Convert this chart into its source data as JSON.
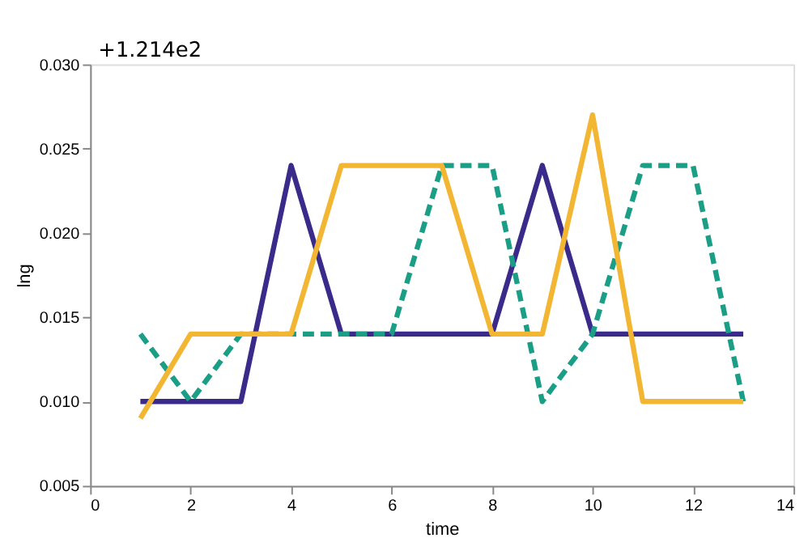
{
  "chart_data": {
    "type": "line",
    "xlabel": "time",
    "ylabel": "lng",
    "x": [
      1,
      2,
      3,
      4,
      5,
      6,
      7,
      8,
      9,
      10,
      11,
      12,
      13
    ],
    "series": [
      {
        "color": "#3a2a8a",
        "line_style": "solid",
        "values": [
          0.01,
          0.01,
          0.01,
          0.024,
          0.014,
          0.014,
          0.014,
          0.014,
          0.024,
          0.014,
          0.014,
          0.014,
          0.014
        ]
      },
      {
        "color": "#1a9e85",
        "line_style": "dashed",
        "values": [
          0.014,
          0.01,
          0.014,
          0.014,
          0.014,
          0.014,
          0.024,
          0.024,
          0.01,
          0.014,
          0.024,
          0.024,
          0.01
        ]
      },
      {
        "color": "#f2b632",
        "line_style": "solid",
        "values": [
          0.009,
          0.014,
          0.014,
          0.014,
          0.024,
          0.024,
          0.024,
          0.014,
          0.014,
          0.027,
          0.01,
          0.01,
          0.01
        ]
      }
    ],
    "xlim": [
      0,
      14
    ],
    "xticks": [
      0,
      2,
      4,
      6,
      8,
      10,
      12,
      14
    ],
    "ylim": [
      0.005,
      0.03
    ],
    "yticks": [
      0.005,
      {
        "value": 0.01,
        "label": "0.010"
      },
      0.015,
      {
        "value": 0.02,
        "label": "0.020"
      },
      0.025,
      {
        "value": 0.03,
        "label": "0.030"
      }
    ],
    "annotations": [
      "+1.214e2"
    ],
    "grid": false,
    "marker": "none"
  }
}
